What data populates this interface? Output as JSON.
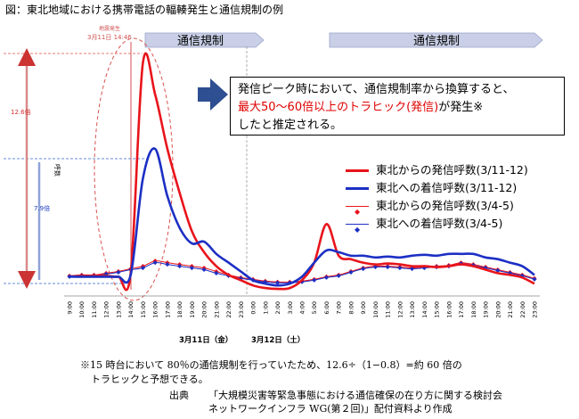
{
  "caption": "図：東北地域における携帯電話の輻輳発生と通信規制の例",
  "banners": [
    "通信規制",
    "通信規制"
  ],
  "quake_time": [
    "地震発生",
    "3月11日 14:46"
  ],
  "callout": {
    "line1": "発信ピーク時において、通信規制率から換算すると、",
    "line2_red": "最大50～60倍以上のトラヒック(発信)",
    "line2_rest": "が発生※",
    "line3": "したと推定される。"
  },
  "annotations": {
    "ratio_high": "12.6倍",
    "ratio_low": "7.9倍",
    "y_axis": "呼数"
  },
  "date_labels": [
    "3月11日（金）",
    "3月12日（土）"
  ],
  "notes": [
    "※15 時台において 80％の通信規制を行っていたため、12.6÷（1−0.8）=約 60 倍の",
    "トラヒックと予想できる。"
  ],
  "source": {
    "label": "出典",
    "line1": "「大規模災害等緊急事態における通信確保の在り方に関する検討会",
    "line2": "ネットワークインフラ WG(第２回)」配付資料より作成"
  },
  "colors": {
    "red": "#e8141b",
    "blue": "#1c2fc4",
    "banner": "#c9cfe6",
    "arrow": "#2e4f91",
    "pink": "#d98a8a"
  },
  "chart_data": {
    "type": "line",
    "x": [
      "9:00",
      "10:00",
      "11:00",
      "12:00",
      "13:00",
      "14:00",
      "15:00",
      "16:00",
      "17:00",
      "18:00",
      "19:00",
      "20:00",
      "21:00",
      "22:00",
      "23:00",
      "0:00",
      "1:00",
      "2:00",
      "3:00",
      "4:00",
      "5:00",
      "6:00",
      "7:00",
      "8:00",
      "9:00",
      "10:00",
      "11:00",
      "12:00",
      "13:00",
      "14:00",
      "15:00",
      "16:00",
      "17:00",
      "18:00",
      "19:00",
      "20:00",
      "21:00",
      "22:00",
      "23:00"
    ],
    "series": [
      {
        "name": "東北からの発信呼数(3/11-12)",
        "color": "#e8141b",
        "style": "thick",
        "values": [
          1,
          1.05,
          1.05,
          1.05,
          1,
          1.2,
          13.2,
          11.4,
          8.3,
          5.8,
          3.6,
          2.4,
          1.6,
          1.1,
          0.8,
          0.5,
          0.35,
          0.3,
          0.35,
          0.8,
          1.8,
          4.0,
          2.2,
          2.0,
          1.8,
          1.7,
          1.75,
          1.7,
          1.6,
          1.6,
          1.55,
          1.6,
          1.7,
          1.6,
          1.4,
          1.2,
          1.1,
          0.95,
          0.6
        ]
      },
      {
        "name": "東北への着信呼数(3/11-12)",
        "color": "#1c2fc4",
        "style": "thick",
        "values": [
          1,
          1,
          1,
          1,
          1,
          1.1,
          6.6,
          8.3,
          5.6,
          3.8,
          2.9,
          3.0,
          2.3,
          1.8,
          1.3,
          0.8,
          0.6,
          0.5,
          0.6,
          1.0,
          1.8,
          2.5,
          2.4,
          2.2,
          2.2,
          2.1,
          2.15,
          2.1,
          2.2,
          2.25,
          2.2,
          2.3,
          2.3,
          2.3,
          2.1,
          2.0,
          1.8,
          1.6,
          1.1
        ]
      },
      {
        "name": "東北からの発信呼数(3/4-5)",
        "color": "#e8141b",
        "style": "marker",
        "values": [
          1.05,
          1.1,
          1.1,
          1.2,
          1.3,
          1.45,
          1.6,
          1.9,
          1.8,
          1.7,
          1.6,
          1.5,
          1.3,
          1.1,
          0.95,
          0.85,
          0.75,
          0.7,
          0.7,
          0.75,
          0.85,
          1.0,
          1.1,
          1.3,
          1.5,
          1.6,
          1.6,
          1.55,
          1.5,
          1.55,
          1.6,
          1.65,
          1.8,
          1.7,
          1.55,
          1.4,
          1.25,
          1.1,
          0.9
        ]
      },
      {
        "name": "東北への着信呼数(3/4-5)",
        "color": "#1c2fc4",
        "style": "marker",
        "values": [
          1.0,
          1.05,
          1.05,
          1.15,
          1.25,
          1.4,
          1.5,
          1.8,
          1.7,
          1.6,
          1.5,
          1.4,
          1.2,
          1.05,
          0.9,
          0.8,
          0.7,
          0.65,
          0.65,
          0.7,
          0.8,
          0.95,
          1.05,
          1.25,
          1.45,
          1.55,
          1.55,
          1.5,
          1.45,
          1.5,
          1.55,
          1.6,
          1.75,
          1.65,
          1.5,
          1.35,
          1.2,
          1.05,
          0.85
        ]
      }
    ],
    "ylabel": "呼数",
    "ylim": [
      0,
      14
    ],
    "grid": false,
    "legend": "right"
  }
}
